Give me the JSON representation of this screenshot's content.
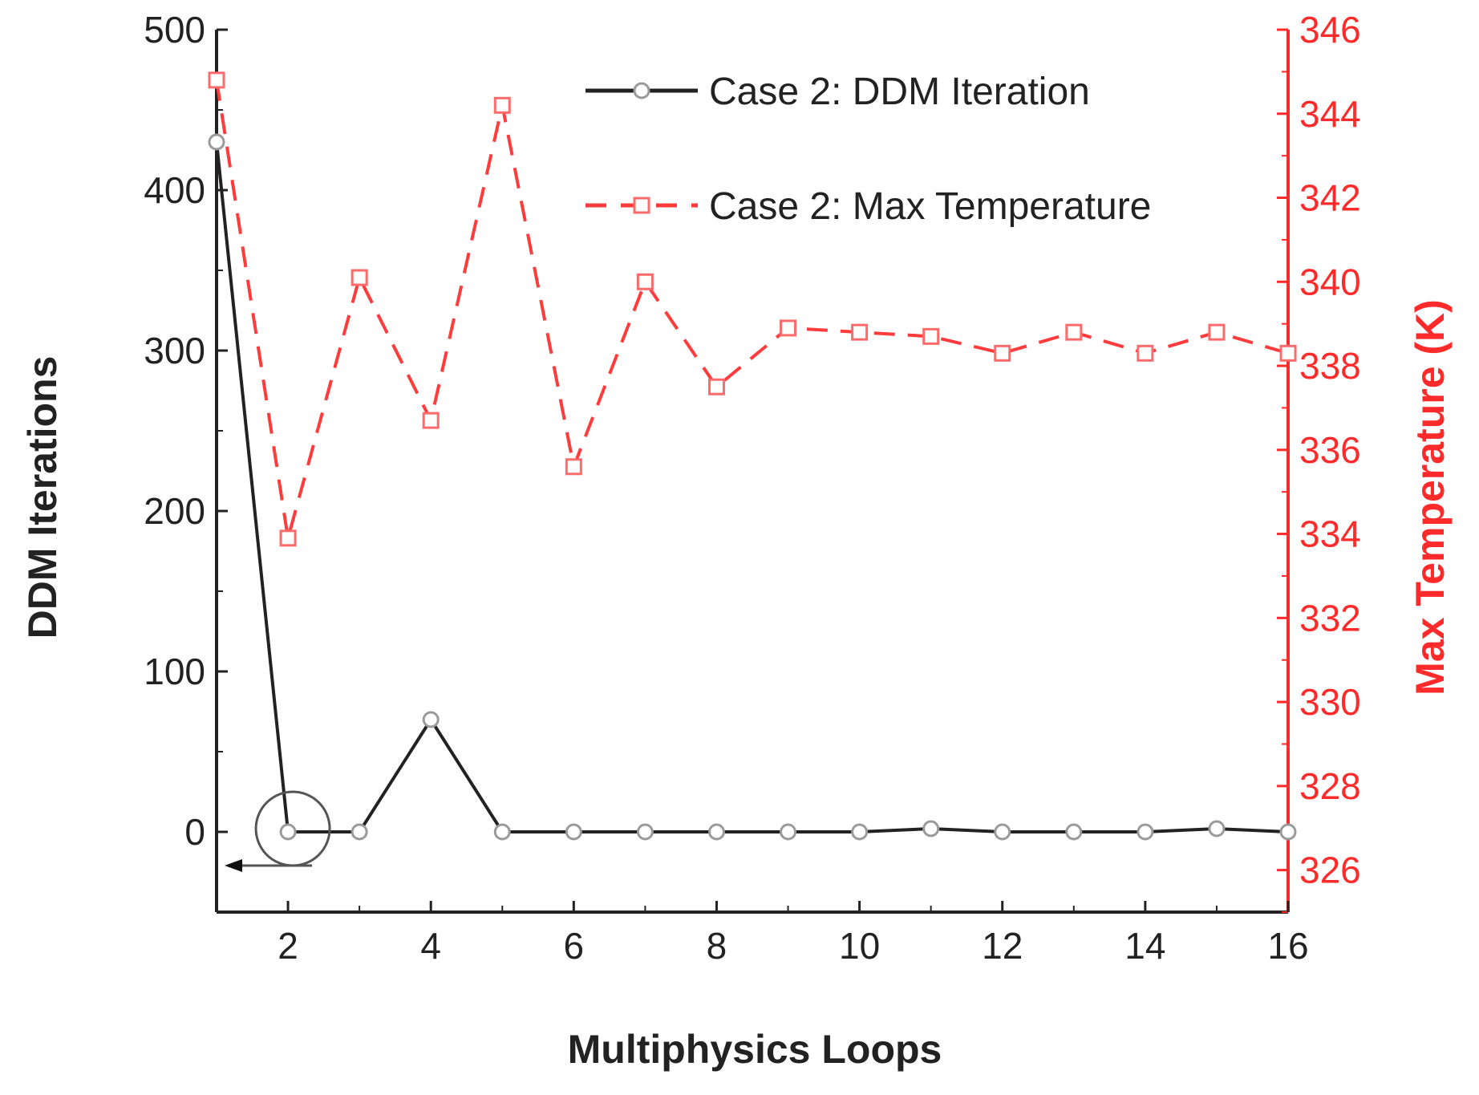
{
  "chart_data": {
    "type": "line",
    "title": "",
    "xlabel": "Multiphysics Loops",
    "ylabel": "DDM Iterations",
    "y2label": "Max Temperature (K)",
    "xlim": [
      1,
      16
    ],
    "ylim": [
      -50,
      500
    ],
    "y2lim": [
      325,
      346
    ],
    "x_ticks": [
      "2",
      "4",
      "6",
      "8",
      "10",
      "12",
      "14",
      "16"
    ],
    "y_ticks": [
      "0",
      "100",
      "200",
      "300",
      "400",
      "500"
    ],
    "y2_ticks": [
      "326",
      "328",
      "330",
      "332",
      "334",
      "336",
      "338",
      "340",
      "342",
      "344",
      "346"
    ],
    "grid": false,
    "legend_position": "top-right",
    "x": [
      1,
      2,
      3,
      4,
      5,
      6,
      7,
      8,
      9,
      10,
      11,
      12,
      13,
      14,
      15,
      16
    ],
    "series": [
      {
        "name": "Case 2: DDM Iteration",
        "axis": "left",
        "color": "#222222",
        "line_style": "solid",
        "marker": "circle",
        "values": [
          430,
          0,
          0,
          70,
          0,
          0,
          0,
          0,
          0,
          0,
          2,
          0,
          0,
          0,
          2,
          0
        ]
      },
      {
        "name": "Case 2: Max Temperature",
        "axis": "right",
        "color": "#ff3b3b",
        "line_style": "dashed",
        "marker": "square",
        "values": [
          344.8,
          333.9,
          340.1,
          336.7,
          344.2,
          335.6,
          340.0,
          337.5,
          338.9,
          338.8,
          338.7,
          338.3,
          338.8,
          338.3,
          338.8,
          338.3
        ]
      }
    ],
    "annotation": {
      "type": "circle-with-arrow",
      "target_x": 2,
      "target_series": "Case 2: DDM Iteration",
      "arrow_direction": "left"
    }
  },
  "colors": {
    "left_axis": "#222222",
    "right_axis": "#ff2a2a",
    "annotation": "#555555"
  }
}
